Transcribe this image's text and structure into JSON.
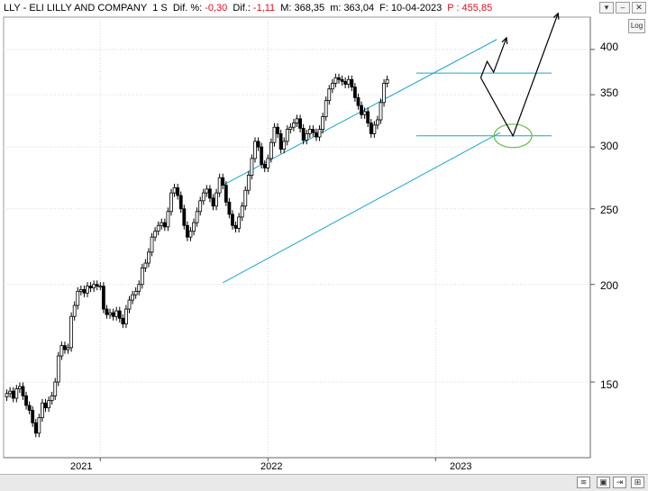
{
  "header": {
    "symbol": "LLY - ELI LILLY AND COMPANY",
    "period": "1 S",
    "dif_pct_label": "Dif. %:",
    "dif_pct": "-0,30",
    "dif_label": "Dif.:",
    "dif": "-1,11",
    "max_label": "M:",
    "max": "368,35",
    "min_label": "m:",
    "min": "363,04",
    "date_label": "F:",
    "date": "10-04-2023",
    "price_label": "P :",
    "price": "455,85"
  },
  "toolbar": {
    "log_label": "Log",
    "top_buttons": [
      "▾",
      "–",
      "✕"
    ],
    "bottom_buttons": [
      "≋",
      "▣",
      "⇥",
      "⊞"
    ]
  },
  "colors": {
    "channel": "#1aa3d4",
    "ellipse": "#5fbf3c",
    "arrow": "#000000",
    "candle_up": "#ffffff",
    "candle_down": "#000000",
    "red_text": "#e0101a"
  },
  "chart_data": {
    "type": "candlestick",
    "title": "LLY - ELI LILLY AND COMPANY",
    "interval": "weekly",
    "yscale": "log",
    "ylim": [
      120,
      440
    ],
    "yticks": [
      "400",
      "350",
      "300",
      "250",
      "200",
      "150"
    ],
    "xlim": [
      "2020-06-08",
      "2023-12-04"
    ],
    "xticks": [
      {
        "label": "2021",
        "date": "2021-01-04"
      },
      {
        "label": "2022",
        "date": "2022-01-03"
      },
      {
        "label": "2023",
        "date": "2023-01-02"
      }
    ],
    "grid": true,
    "closes": [
      145,
      146,
      143,
      147,
      148,
      144,
      140,
      138,
      133,
      129,
      135,
      141,
      139,
      142,
      144,
      150,
      162,
      167,
      165,
      166,
      182,
      188,
      196,
      197,
      195,
      199,
      198,
      200,
      199,
      199,
      186,
      183,
      184,
      182,
      185,
      181,
      178,
      186,
      191,
      194,
      196,
      200,
      210,
      213,
      220,
      230,
      234,
      238,
      240,
      237,
      248,
      262,
      266,
      260,
      250,
      238,
      230,
      234,
      240,
      248,
      256,
      262,
      265,
      258,
      252,
      262,
      274,
      268,
      255,
      246,
      238,
      236,
      244,
      252,
      264,
      276,
      290,
      305,
      300,
      285,
      282,
      290,
      304,
      318,
      312,
      298,
      305,
      316,
      318,
      322,
      326,
      317,
      306,
      312,
      316,
      313,
      309,
      316,
      328,
      344,
      356,
      362,
      368,
      366,
      364,
      361,
      366,
      358,
      347,
      339,
      330,
      333,
      322,
      312,
      320,
      325,
      342,
      362,
      366
    ],
    "channel_upper": [
      {
        "date": "2021-09-27",
        "value": 268
      },
      {
        "date": "2023-05-15",
        "value": 412
      }
    ],
    "channel_lower": [
      {
        "date": "2021-09-27",
        "value": 201
      },
      {
        "date": "2023-05-22",
        "value": 313
      }
    ],
    "resistance": [
      {
        "date": "2022-11-21",
        "value": 373
      },
      {
        "date": "2023-09-11",
        "value": 373
      }
    ],
    "support": [
      {
        "date": "2022-11-21",
        "value": 310
      },
      {
        "date": "2023-09-11",
        "value": 310
      }
    ],
    "projection_ellipse": {
      "date": "2023-06-19",
      "value": 310
    },
    "projection_path_a": [
      {
        "date": "2023-04-10",
        "value": 368
      },
      {
        "date": "2023-04-24",
        "value": 386
      },
      {
        "date": "2023-05-08",
        "value": 374
      },
      {
        "date": "2023-06-05",
        "value": 414
      }
    ],
    "projection_path_b": [
      {
        "date": "2023-04-10",
        "value": 368
      },
      {
        "date": "2023-06-19",
        "value": 310
      },
      {
        "date": "2023-09-25",
        "value": 445
      }
    ]
  }
}
